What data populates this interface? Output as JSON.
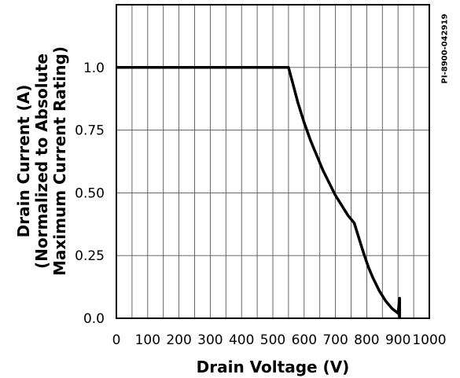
{
  "chart_data": {
    "type": "line",
    "title": "",
    "xlabel": "Drain Voltage (V)",
    "ylabel_lines": [
      "Drain Current (A)",
      "(Normalized to Absolute",
      "Maximum Current Rating)"
    ],
    "xlim": [
      0,
      1000
    ],
    "ylim": [
      0,
      1.25
    ],
    "x_tick_values": [
      0,
      100,
      200,
      300,
      400,
      500,
      600,
      700,
      800,
      900,
      1000
    ],
    "x_tick_labels": [
      "0",
      "100",
      "200",
      "300",
      "400",
      "500",
      "600",
      "700",
      "800",
      "900",
      "1000"
    ],
    "y_tick_values": [
      0,
      0.25,
      0.5,
      0.75,
      1.0
    ],
    "y_tick_labels": [
      "0.0",
      "0.25",
      "0.50",
      "0.75",
      "1.0"
    ],
    "grid": true,
    "series": [
      {
        "x": [
          0,
          550,
          565,
          580,
          600,
          620,
          640,
          660,
          680,
          700,
          720,
          740,
          760,
          775,
          790,
          805,
          820,
          840,
          860,
          880,
          900,
          905,
          905
        ],
        "y": [
          1.0,
          1.0,
          0.93,
          0.86,
          0.78,
          0.71,
          0.65,
          0.59,
          0.54,
          0.49,
          0.45,
          0.41,
          0.38,
          0.32,
          0.26,
          0.205,
          0.16,
          0.11,
          0.07,
          0.04,
          0.02,
          0.08,
          0.0
        ]
      }
    ],
    "figure_id": "PI-8900-042919"
  }
}
